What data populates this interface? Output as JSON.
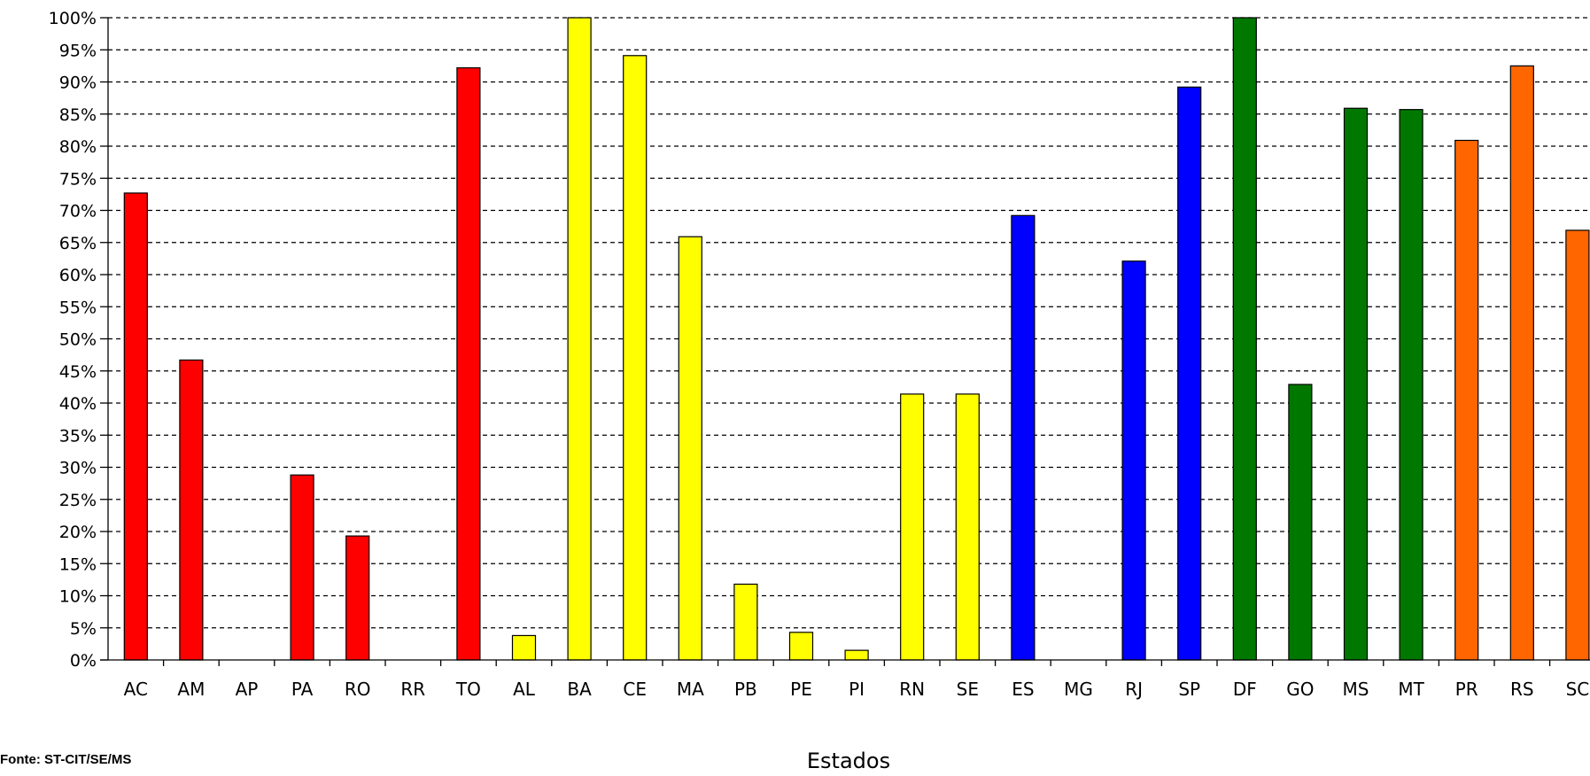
{
  "chart_data": {
    "type": "bar",
    "categories": [
      "AC",
      "AM",
      "AP",
      "PA",
      "RO",
      "RR",
      "TO",
      "AL",
      "BA",
      "CE",
      "MA",
      "PB",
      "PE",
      "PI",
      "RN",
      "SE",
      "ES",
      "MG",
      "RJ",
      "SP",
      "DF",
      "GO",
      "MS",
      "MT",
      "PR",
      "RS",
      "SC"
    ],
    "values": [
      72.7,
      46.7,
      0,
      28.8,
      19.3,
      0,
      92.2,
      3.8,
      100,
      94.1,
      65.9,
      11.8,
      4.3,
      1.5,
      41.4,
      41.4,
      69.2,
      0,
      62.1,
      89.2,
      100,
      42.9,
      85.9,
      85.7,
      80.9,
      92.5,
      66.9
    ],
    "bar_colors": [
      "#ff0000",
      "#ff0000",
      "#ff0000",
      "#ff0000",
      "#ff0000",
      "#ff0000",
      "#ff0000",
      "#ffff00",
      "#ffff00",
      "#ffff00",
      "#ffff00",
      "#ffff00",
      "#ffff00",
      "#ffff00",
      "#ffff00",
      "#ffff00",
      "#0000ff",
      "#0000ff",
      "#0000ff",
      "#0000ff",
      "#007800",
      "#007800",
      "#007800",
      "#007800",
      "#ff6600",
      "#ff6600",
      "#ff6600"
    ],
    "ylim": [
      0,
      100
    ],
    "yticks": [
      "0%",
      "5%",
      "10%",
      "15%",
      "20%",
      "25%",
      "30%",
      "35%",
      "40%",
      "45%",
      "50%",
      "55%",
      "60%",
      "65%",
      "70%",
      "75%",
      "80%",
      "85%",
      "90%",
      "95%",
      "100%"
    ],
    "xlabel": "Estados",
    "ylabel": "",
    "title": "",
    "grid": true
  },
  "footer": {
    "source": "Fonte: ST-CIT/SE/MS"
  }
}
